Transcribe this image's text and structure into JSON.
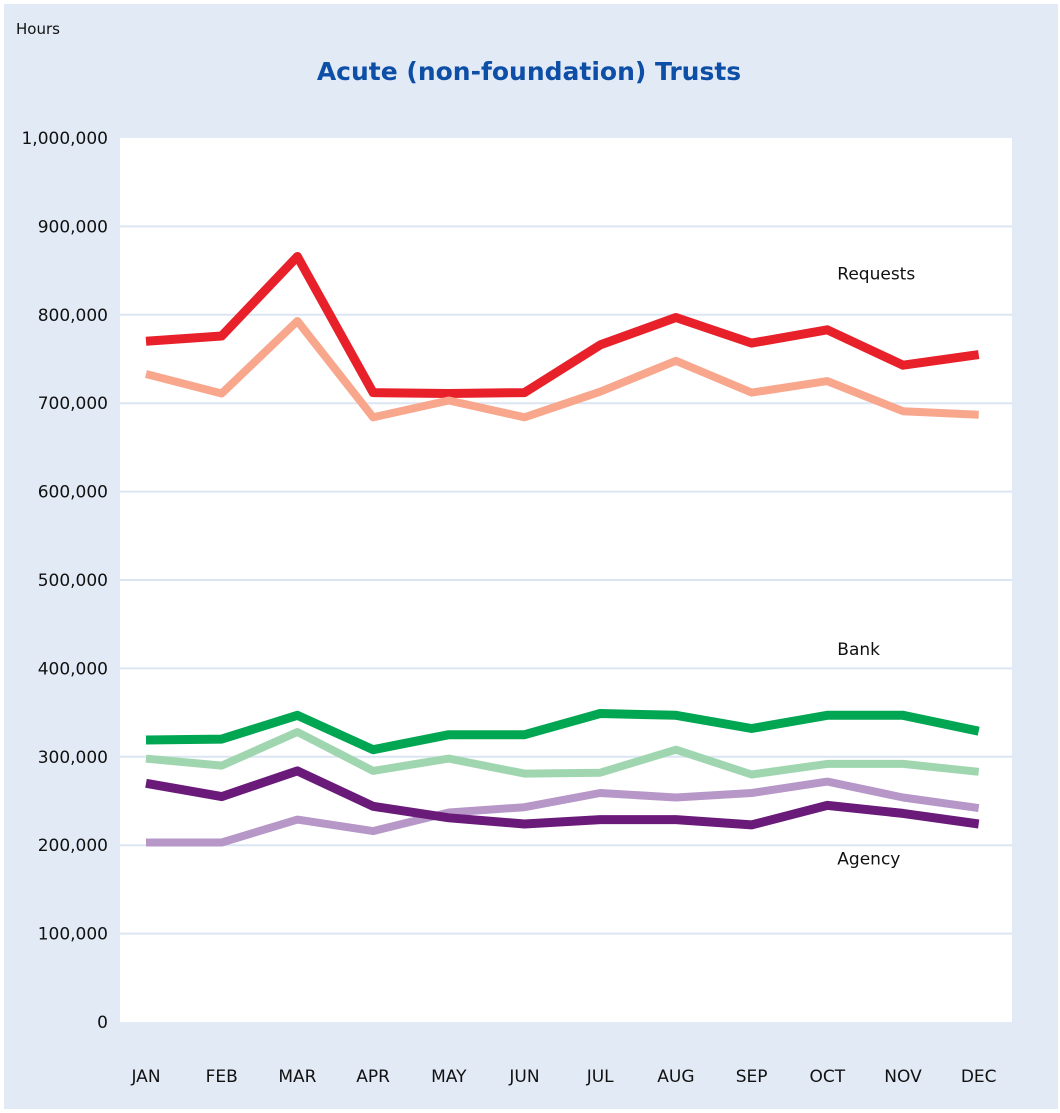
{
  "chart_data": {
    "type": "line",
    "title": "Acute (non-foundation) Trusts",
    "unit_label": "Hours",
    "ylim": [
      0,
      1000000
    ],
    "y_ticks": [
      0,
      100000,
      200000,
      300000,
      400000,
      500000,
      600000,
      700000,
      800000,
      900000,
      1000000
    ],
    "y_tick_labels": [
      "0",
      "100,000",
      "200,000",
      "300,000",
      "400,000",
      "500,000",
      "600,000",
      "700,000",
      "800,000",
      "900,000",
      "1,000,000"
    ],
    "categories": [
      "JAN",
      "FEB",
      "MAR",
      "APR",
      "MAY",
      "JUN",
      "JUL",
      "AUG",
      "SEP",
      "OCT",
      "NOV",
      "DEC"
    ],
    "grid": true,
    "series": [
      {
        "key": "requests-dark",
        "color": "#e8202a",
        "width": 9,
        "values": [
          770000,
          776000,
          866000,
          712000,
          711000,
          712000,
          766000,
          797000,
          768000,
          783000,
          743000,
          755000
        ]
      },
      {
        "key": "requests-light",
        "color": "#f8a68c",
        "width": 8,
        "values": [
          733000,
          711000,
          793000,
          684000,
          703000,
          684000,
          713000,
          748000,
          712000,
          725000,
          691000,
          687000
        ]
      },
      {
        "key": "bank-dark",
        "color": "#00a651",
        "width": 9,
        "values": [
          319000,
          320000,
          347000,
          308000,
          325000,
          325000,
          349000,
          347000,
          332000,
          347000,
          347000,
          329000
        ]
      },
      {
        "key": "bank-light",
        "color": "#9fd6b0",
        "width": 8,
        "values": [
          298000,
          290000,
          328000,
          284000,
          298000,
          281000,
          282000,
          308000,
          280000,
          292000,
          292000,
          283000
        ]
      },
      {
        "key": "agency-light",
        "color": "#b697c8",
        "width": 8,
        "values": [
          203000,
          203000,
          229000,
          216000,
          237000,
          243000,
          259000,
          254000,
          259000,
          272000,
          254000,
          242000
        ]
      },
      {
        "key": "agency-dark",
        "color": "#6a1b7a",
        "width": 9,
        "values": [
          270000,
          255000,
          284000,
          244000,
          231000,
          224000,
          229000,
          229000,
          223000,
          245000,
          236000,
          224000
        ]
      }
    ],
    "annotations": [
      {
        "key": "requests",
        "text": "Requests",
        "x": "OCT",
        "y": 840000
      },
      {
        "key": "bank",
        "text": "Bank",
        "x": "OCT",
        "y": 415000
      },
      {
        "key": "agency",
        "text": "Agency",
        "x": "OCT",
        "y": 178000
      }
    ]
  }
}
